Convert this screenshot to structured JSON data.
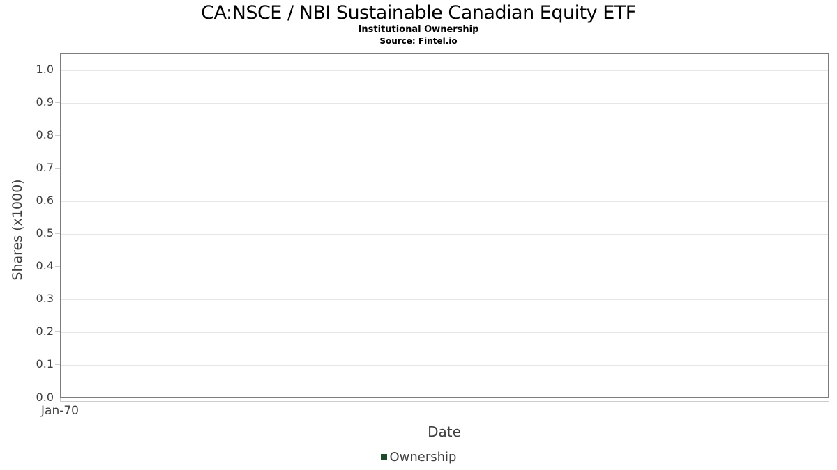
{
  "header": {
    "title": "CA:NSCE / NBI Sustainable Canadian Equity ETF",
    "subtitle": "Institutional Ownership",
    "source": "Source: Fintel.io"
  },
  "axes": {
    "y_label": "Shares (x1000)",
    "x_label": "Date",
    "x_tick": "Jan-70"
  },
  "legend": {
    "items": [
      {
        "label": "Ownership",
        "color": "#1e4b2c"
      }
    ]
  },
  "colors": {
    "plot_border": "#7d7d7d",
    "gridline": "#e6e6e6",
    "tick_mark": "#cccccc",
    "axis_text": "#3f3f3f",
    "title_text": "#000000",
    "series_green": "#1e4b2c"
  },
  "chart_data": {
    "type": "bar",
    "title": "CA:NSCE / NBI Sustainable Canadian Equity ETF",
    "subtitle": "Institutional Ownership",
    "source": "Source: Fintel.io",
    "xlabel": "Date",
    "ylabel": "Shares (x1000)",
    "categories": [
      "Jan-70"
    ],
    "series": [
      {
        "name": "Ownership",
        "color": "#1e4b2c",
        "values": []
      }
    ],
    "y_ticks": [
      0.0,
      0.1,
      0.2,
      0.3,
      0.4,
      0.5,
      0.6,
      0.7,
      0.8,
      0.9,
      1.0
    ],
    "ylim": [
      0,
      1.05
    ],
    "grid": true,
    "legend_position": "bottom",
    "note": "chart contains no plotted data points"
  }
}
